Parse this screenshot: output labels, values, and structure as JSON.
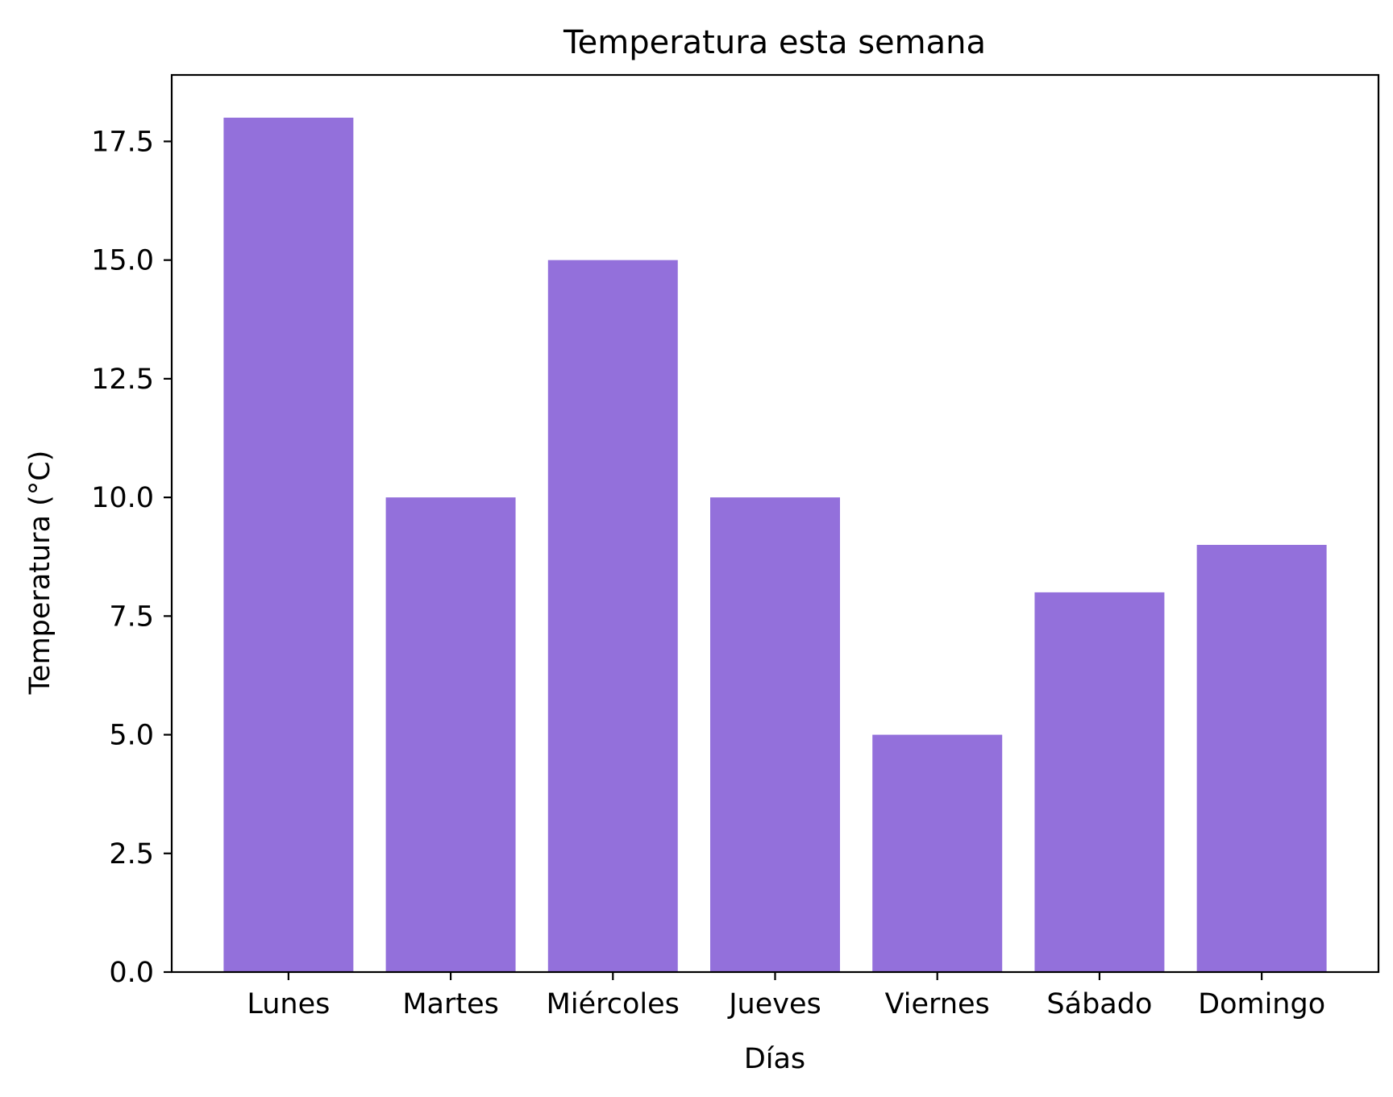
{
  "chart_data": {
    "type": "bar",
    "title": "Temperatura esta semana",
    "xlabel": "Días",
    "ylabel": "Temperatura (°C)",
    "categories": [
      "Lunes",
      "Martes",
      "Miércoles",
      "Jueves",
      "Viernes",
      "Sábado",
      "Domingo"
    ],
    "values": [
      18,
      10,
      15,
      10,
      5,
      8,
      9
    ],
    "ylim": [
      0,
      18.9
    ],
    "yticks": [
      0.0,
      2.5,
      5.0,
      7.5,
      10.0,
      12.5,
      15.0,
      17.5
    ],
    "ytick_labels": [
      "0.0",
      "2.5",
      "5.0",
      "7.5",
      "10.0",
      "12.5",
      "15.0",
      "17.5"
    ],
    "bar_color": "#9370DB",
    "grid": false,
    "legend": "none"
  }
}
